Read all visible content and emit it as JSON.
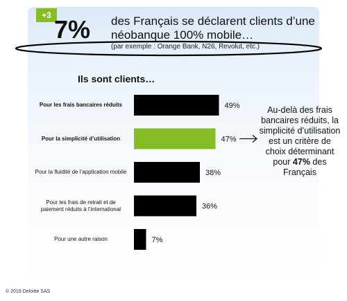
{
  "header": {
    "badge": "+3",
    "big_percent": "7%",
    "headline": "des Français se déclarent clients d’une néobanque 100% mobile…",
    "subline": "(par exemple : Orange Bank, N26, Revolut, etc.)"
  },
  "chart_data": {
    "type": "bar",
    "orientation": "horizontal",
    "title": "Ils sont clients…",
    "categories": [
      "Pour les frais bancaires réduits",
      "Pour la simplicité d’utilisation",
      "Pour la fluidité de l’application mobile",
      "Pour les frais de retrait et de paiement réduits à l’international",
      "Pour une autre raison"
    ],
    "values": [
      49,
      47,
      38,
      36,
      7
    ],
    "value_labels": [
      "49%",
      "47%",
      "38%",
      "36%",
      "7%"
    ],
    "highlight_index": 1,
    "xlim": [
      0,
      50
    ],
    "colors": {
      "default": "#000000",
      "highlight": "#86bc25"
    },
    "grid": false
  },
  "annotation": {
    "text_before": "Au-delà des frais bancaires réduits, la simplicité d’utilisation est un critère de choix déterminant pour",
    "bold": "47%",
    "text_after": " des Français",
    "icon": "arrow-right-icon"
  },
  "footer": {
    "copyright": "© 2019 Deloitte SAS"
  }
}
